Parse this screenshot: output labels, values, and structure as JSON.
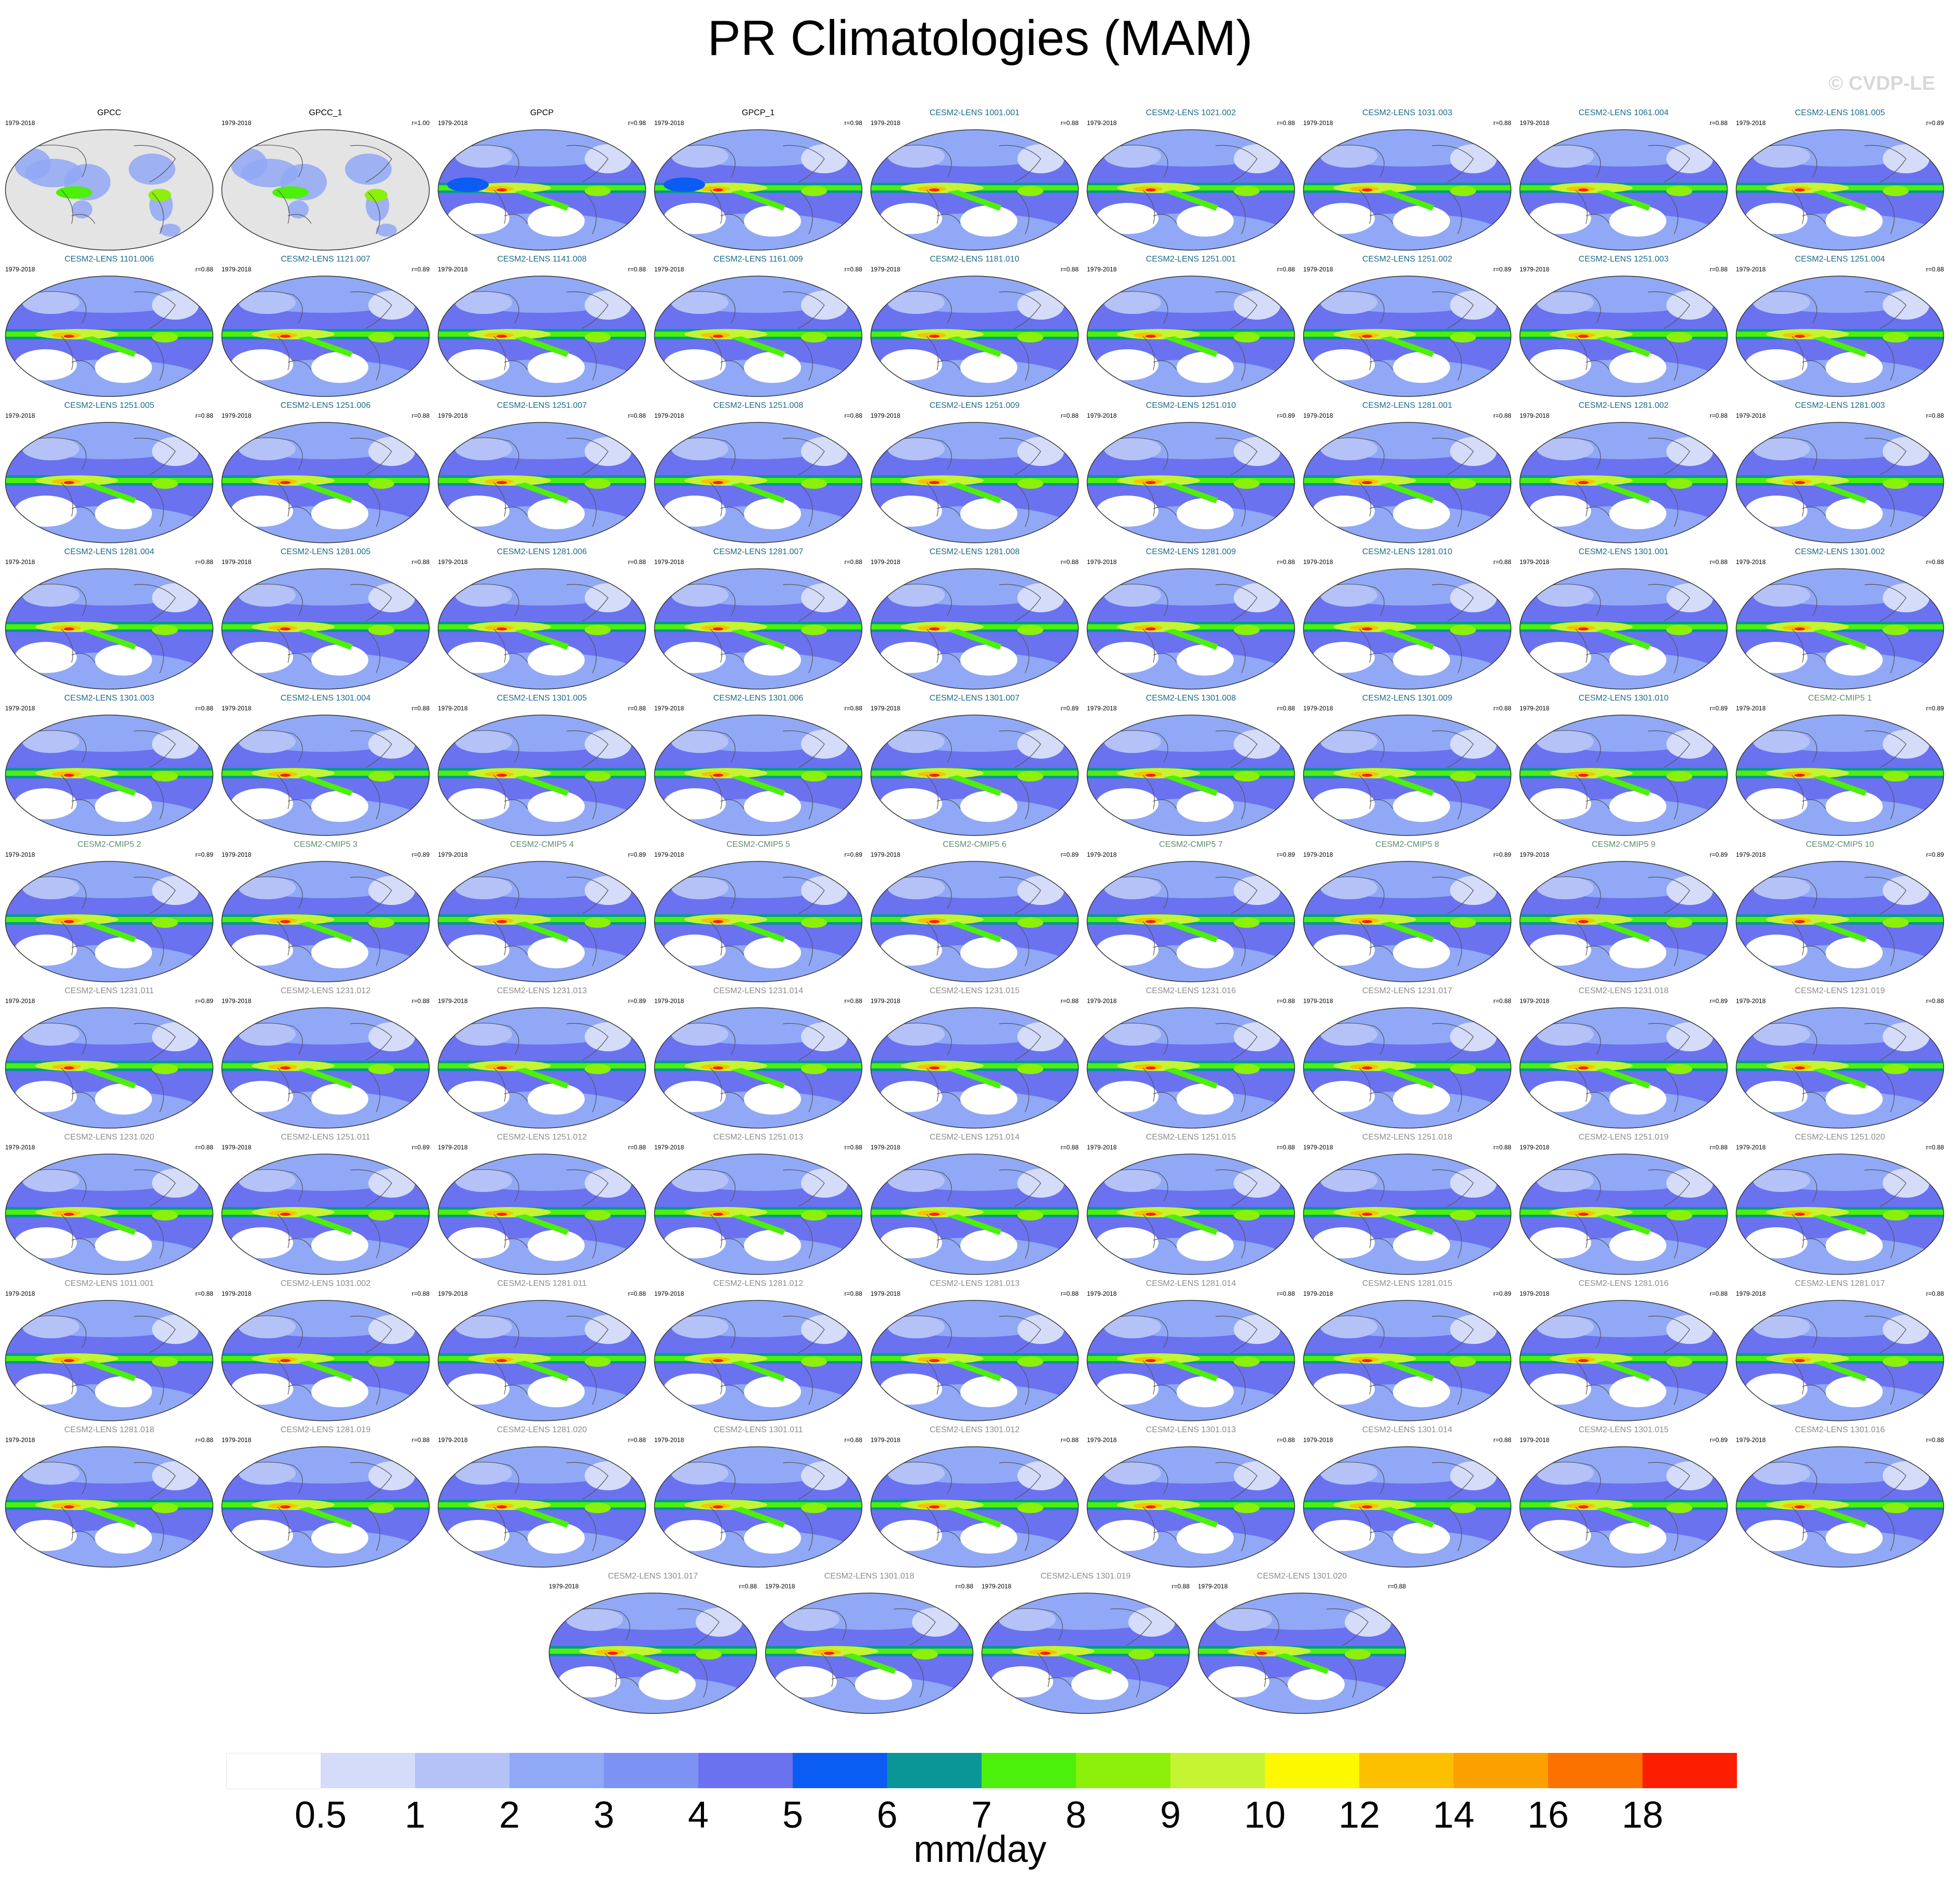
{
  "title": "PR Climatologies (MAM)",
  "watermark": "© CVDP-LE",
  "icons": {
    "map": "world-map-icon"
  },
  "name_colors": {
    "obs": "#000000",
    "lens_a": "#1a6b8a",
    "cmip": "#5e8a6e",
    "lens_b": "#8c8c8c"
  },
  "panels": [
    {
      "name": "GPCC",
      "period": "1979-2018",
      "corr": "",
      "group": "obs",
      "style": "obs"
    },
    {
      "name": "GPCC_1",
      "period": "1979-2018",
      "corr": "r=1.00",
      "group": "obs",
      "style": "obs"
    },
    {
      "name": "GPCP",
      "period": "1979-2018",
      "corr": "r=0.98",
      "group": "obs",
      "style": "obsfull"
    },
    {
      "name": "GPCP_1",
      "period": "1979-2018",
      "corr": "r=0.98",
      "group": "obs",
      "style": "obsfull"
    },
    {
      "name": "CESM2-LENS 1001.001",
      "period": "1979-2018",
      "corr": "r=0.88",
      "group": "lens_a",
      "style": "model"
    },
    {
      "name": "CESM2-LENS 1021.002",
      "period": "1979-2018",
      "corr": "r=0.88",
      "group": "lens_a",
      "style": "model"
    },
    {
      "name": "CESM2-LENS 1031.003",
      "period": "1979-2018",
      "corr": "r=0.88",
      "group": "lens_a",
      "style": "model"
    },
    {
      "name": "CESM2-LENS 1061.004",
      "period": "1979-2018",
      "corr": "r=0.88",
      "group": "lens_a",
      "style": "model"
    },
    {
      "name": "CESM2-LENS 1081.005",
      "period": "1979-2018",
      "corr": "r=0.89",
      "group": "lens_a",
      "style": "model"
    },
    {
      "name": "CESM2-LENS 1101.006",
      "period": "1979-2018",
      "corr": "r=0.88",
      "group": "lens_a",
      "style": "model"
    },
    {
      "name": "CESM2-LENS 1121.007",
      "period": "1979-2018",
      "corr": "r=0.89",
      "group": "lens_a",
      "style": "model"
    },
    {
      "name": "CESM2-LENS 1141.008",
      "period": "1979-2018",
      "corr": "r=0.88",
      "group": "lens_a",
      "style": "model"
    },
    {
      "name": "CESM2-LENS 1161.009",
      "period": "1979-2018",
      "corr": "r=0.88",
      "group": "lens_a",
      "style": "model"
    },
    {
      "name": "CESM2-LENS 1181.010",
      "period": "1979-2018",
      "corr": "r=0.88",
      "group": "lens_a",
      "style": "model"
    },
    {
      "name": "CESM2-LENS 1251.001",
      "period": "1979-2018",
      "corr": "r=0.88",
      "group": "lens_a",
      "style": "model"
    },
    {
      "name": "CESM2-LENS 1251.002",
      "period": "1979-2018",
      "corr": "r=0.89",
      "group": "lens_a",
      "style": "model"
    },
    {
      "name": "CESM2-LENS 1251.003",
      "period": "1979-2018",
      "corr": "r=0.88",
      "group": "lens_a",
      "style": "model"
    },
    {
      "name": "CESM2-LENS 1251.004",
      "period": "1979-2018",
      "corr": "r=0.88",
      "group": "lens_a",
      "style": "model"
    },
    {
      "name": "CESM2-LENS 1251.005",
      "period": "1979-2018",
      "corr": "r=0.88",
      "group": "lens_a",
      "style": "model"
    },
    {
      "name": "CESM2-LENS 1251.006",
      "period": "1979-2018",
      "corr": "r=0.88",
      "group": "lens_a",
      "style": "model"
    },
    {
      "name": "CESM2-LENS 1251.007",
      "period": "1979-2018",
      "corr": "r=0.88",
      "group": "lens_a",
      "style": "model"
    },
    {
      "name": "CESM2-LENS 1251.008",
      "period": "1979-2018",
      "corr": "r=0.88",
      "group": "lens_a",
      "style": "model"
    },
    {
      "name": "CESM2-LENS 1251.009",
      "period": "1979-2018",
      "corr": "r=0.88",
      "group": "lens_a",
      "style": "model"
    },
    {
      "name": "CESM2-LENS 1251.010",
      "period": "1979-2018",
      "corr": "r=0.89",
      "group": "lens_a",
      "style": "model"
    },
    {
      "name": "CESM2-LENS 1281.001",
      "period": "1979-2018",
      "corr": "r=0.88",
      "group": "lens_a",
      "style": "model"
    },
    {
      "name": "CESM2-LENS 1281.002",
      "period": "1979-2018",
      "corr": "r=0.88",
      "group": "lens_a",
      "style": "model"
    },
    {
      "name": "CESM2-LENS 1281.003",
      "period": "1979-2018",
      "corr": "r=0.88",
      "group": "lens_a",
      "style": "model"
    },
    {
      "name": "CESM2-LENS 1281.004",
      "period": "1979-2018",
      "corr": "r=0.88",
      "group": "lens_a",
      "style": "model"
    },
    {
      "name": "CESM2-LENS 1281.005",
      "period": "1979-2018",
      "corr": "r=0.88",
      "group": "lens_a",
      "style": "model"
    },
    {
      "name": "CESM2-LENS 1281.006",
      "period": "1979-2018",
      "corr": "r=0.88",
      "group": "lens_a",
      "style": "model"
    },
    {
      "name": "CESM2-LENS 1281.007",
      "period": "1979-2018",
      "corr": "r=0.88",
      "group": "lens_a",
      "style": "model"
    },
    {
      "name": "CESM2-LENS 1281.008",
      "period": "1979-2018",
      "corr": "r=0.88",
      "group": "lens_a",
      "style": "model"
    },
    {
      "name": "CESM2-LENS 1281.009",
      "period": "1979-2018",
      "corr": "r=0.88",
      "group": "lens_a",
      "style": "model"
    },
    {
      "name": "CESM2-LENS 1281.010",
      "period": "1979-2018",
      "corr": "r=0.88",
      "group": "lens_a",
      "style": "model"
    },
    {
      "name": "CESM2-LENS 1301.001",
      "period": "1979-2018",
      "corr": "r=0.88",
      "group": "lens_a",
      "style": "model"
    },
    {
      "name": "CESM2-LENS 1301.002",
      "period": "1979-2018",
      "corr": "r=0.88",
      "group": "lens_a",
      "style": "model"
    },
    {
      "name": "CESM2-LENS 1301.003",
      "period": "1979-2018",
      "corr": "r=0.88",
      "group": "lens_a",
      "style": "model"
    },
    {
      "name": "CESM2-LENS 1301.004",
      "period": "1979-2018",
      "corr": "r=0.88",
      "group": "lens_a",
      "style": "model"
    },
    {
      "name": "CESM2-LENS 1301.005",
      "period": "1979-2018",
      "corr": "r=0.88",
      "group": "lens_a",
      "style": "model"
    },
    {
      "name": "CESM2-LENS 1301.006",
      "period": "1979-2018",
      "corr": "r=0.88",
      "group": "lens_a",
      "style": "model"
    },
    {
      "name": "CESM2-LENS 1301.007",
      "period": "1979-2018",
      "corr": "r=0.89",
      "group": "lens_a",
      "style": "model"
    },
    {
      "name": "CESM2-LENS 1301.008",
      "period": "1979-2018",
      "corr": "r=0.88",
      "group": "lens_a",
      "style": "model"
    },
    {
      "name": "CESM2-LENS 1301.009",
      "period": "1979-2018",
      "corr": "r=0.88",
      "group": "lens_a",
      "style": "model"
    },
    {
      "name": "CESM2-LENS 1301.010",
      "period": "1979-2018",
      "corr": "r=0.89",
      "group": "lens_a",
      "style": "model"
    },
    {
      "name": "CESM2-CMIP5 1",
      "period": "1979-2018",
      "corr": "r=0.89",
      "group": "cmip",
      "style": "model"
    },
    {
      "name": "CESM2-CMIP5 2",
      "period": "1979-2018",
      "corr": "r=0.89",
      "group": "cmip",
      "style": "model"
    },
    {
      "name": "CESM2-CMIP5 3",
      "period": "1979-2018",
      "corr": "r=0.89",
      "group": "cmip",
      "style": "model"
    },
    {
      "name": "CESM2-CMIP5 4",
      "period": "1979-2018",
      "corr": "r=0.89",
      "group": "cmip",
      "style": "model"
    },
    {
      "name": "CESM2-CMIP5 5",
      "period": "1979-2018",
      "corr": "r=0.89",
      "group": "cmip",
      "style": "model"
    },
    {
      "name": "CESM2-CMIP5 6",
      "period": "1979-2018",
      "corr": "r=0.89",
      "group": "cmip",
      "style": "model"
    },
    {
      "name": "CESM2-CMIP5 7",
      "period": "1979-2018",
      "corr": "r=0.89",
      "group": "cmip",
      "style": "model"
    },
    {
      "name": "CESM2-CMIP5 8",
      "period": "1979-2018",
      "corr": "r=0.89",
      "group": "cmip",
      "style": "model"
    },
    {
      "name": "CESM2-CMIP5 9",
      "period": "1979-2018",
      "corr": "r=0.89",
      "group": "cmip",
      "style": "model"
    },
    {
      "name": "CESM2-CMIP5 10",
      "period": "1979-2018",
      "corr": "r=0.89",
      "group": "cmip",
      "style": "model"
    },
    {
      "name": "CESM2-LENS 1231.011",
      "period": "1979-2018",
      "corr": "r=0.89",
      "group": "lens_b",
      "style": "model"
    },
    {
      "name": "CESM2-LENS 1231.012",
      "period": "1979-2018",
      "corr": "r=0.88",
      "group": "lens_b",
      "style": "model"
    },
    {
      "name": "CESM2-LENS 1231.013",
      "period": "1979-2018",
      "corr": "r=0.89",
      "group": "lens_b",
      "style": "model"
    },
    {
      "name": "CESM2-LENS 1231.014",
      "period": "1979-2018",
      "corr": "r=0.88",
      "group": "lens_b",
      "style": "model"
    },
    {
      "name": "CESM2-LENS 1231.015",
      "period": "1979-2018",
      "corr": "r=0.88",
      "group": "lens_b",
      "style": "model"
    },
    {
      "name": "CESM2-LENS 1231.016",
      "period": "1979-2018",
      "corr": "r=0.88",
      "group": "lens_b",
      "style": "model"
    },
    {
      "name": "CESM2-LENS 1231.017",
      "period": "1979-2018",
      "corr": "r=0.88",
      "group": "lens_b",
      "style": "model"
    },
    {
      "name": "CESM2-LENS 1231.018",
      "period": "1979-2018",
      "corr": "r=0.89",
      "group": "lens_b",
      "style": "model"
    },
    {
      "name": "CESM2-LENS 1231.019",
      "period": "1979-2018",
      "corr": "r=0.88",
      "group": "lens_b",
      "style": "model"
    },
    {
      "name": "CESM2-LENS 1231.020",
      "period": "1979-2018",
      "corr": "r=0.88",
      "group": "lens_b",
      "style": "model"
    },
    {
      "name": "CESM2-LENS 1251.011",
      "period": "1979-2018",
      "corr": "r=0.89",
      "group": "lens_b",
      "style": "model"
    },
    {
      "name": "CESM2-LENS 1251.012",
      "period": "1979-2018",
      "corr": "r=0.88",
      "group": "lens_b",
      "style": "model"
    },
    {
      "name": "CESM2-LENS 1251.013",
      "period": "1979-2018",
      "corr": "r=0.88",
      "group": "lens_b",
      "style": "model"
    },
    {
      "name": "CESM2-LENS 1251.014",
      "period": "1979-2018",
      "corr": "r=0.88",
      "group": "lens_b",
      "style": "model"
    },
    {
      "name": "CESM2-LENS 1251.015",
      "period": "1979-2018",
      "corr": "r=0.88",
      "group": "lens_b",
      "style": "model"
    },
    {
      "name": "CESM2-LENS 1251.018",
      "period": "1979-2018",
      "corr": "r=0.88",
      "group": "lens_b",
      "style": "model"
    },
    {
      "name": "CESM2-LENS 1251.019",
      "period": "1979-2018",
      "corr": "r=0.88",
      "group": "lens_b",
      "style": "model"
    },
    {
      "name": "CESM2-LENS 1251.020",
      "period": "1979-2018",
      "corr": "r=0.88",
      "group": "lens_b",
      "style": "model"
    },
    {
      "name": "CESM2-LENS 1011.001",
      "period": "1979-2018",
      "corr": "r=0.88",
      "group": "lens_b",
      "style": "model"
    },
    {
      "name": "CESM2-LENS 1031.002",
      "period": "1979-2018",
      "corr": "r=0.88",
      "group": "lens_b",
      "style": "model"
    },
    {
      "name": "CESM2-LENS 1281.011",
      "period": "1979-2018",
      "corr": "r=0.88",
      "group": "lens_b",
      "style": "model"
    },
    {
      "name": "CESM2-LENS 1281.012",
      "period": "1979-2018",
      "corr": "r=0.88",
      "group": "lens_b",
      "style": "model"
    },
    {
      "name": "CESM2-LENS 1281.013",
      "period": "1979-2018",
      "corr": "r=0.88",
      "group": "lens_b",
      "style": "model"
    },
    {
      "name": "CESM2-LENS 1281.014",
      "period": "1979-2018",
      "corr": "r=0.88",
      "group": "lens_b",
      "style": "model"
    },
    {
      "name": "CESM2-LENS 1281.015",
      "period": "1979-2018",
      "corr": "r=0.89",
      "group": "lens_b",
      "style": "model"
    },
    {
      "name": "CESM2-LENS 1281.016",
      "period": "1979-2018",
      "corr": "r=0.88",
      "group": "lens_b",
      "style": "model"
    },
    {
      "name": "CESM2-LENS 1281.017",
      "period": "1979-2018",
      "corr": "r=0.88",
      "group": "lens_b",
      "style": "model"
    },
    {
      "name": "CESM2-LENS 1281.018",
      "period": "1979-2018",
      "corr": "r=0.88",
      "group": "lens_b",
      "style": "model"
    },
    {
      "name": "CESM2-LENS 1281.019",
      "period": "1979-2018",
      "corr": "r=0.88",
      "group": "lens_b",
      "style": "model"
    },
    {
      "name": "CESM2-LENS 1281.020",
      "period": "1979-2018",
      "corr": "r=0.88",
      "group": "lens_b",
      "style": "model"
    },
    {
      "name": "CESM2-LENS 1301.011",
      "period": "1979-2018",
      "corr": "r=0.88",
      "group": "lens_b",
      "style": "model"
    },
    {
      "name": "CESM2-LENS 1301.012",
      "period": "1979-2018",
      "corr": "r=0.88",
      "group": "lens_b",
      "style": "model"
    },
    {
      "name": "CESM2-LENS 1301.013",
      "period": "1979-2018",
      "corr": "r=0.88",
      "group": "lens_b",
      "style": "model"
    },
    {
      "name": "CESM2-LENS 1301.014",
      "period": "1979-2018",
      "corr": "r=0.88",
      "group": "lens_b",
      "style": "model"
    },
    {
      "name": "CESM2-LENS 1301.015",
      "period": "1979-2018",
      "corr": "r=0.89",
      "group": "lens_b",
      "style": "model"
    },
    {
      "name": "CESM2-LENS 1301.016",
      "period": "1979-2018",
      "corr": "r=0.88",
      "group": "lens_b",
      "style": "model"
    },
    {
      "name": "CESM2-LENS 1301.017",
      "period": "1979-2018",
      "corr": "r=0.88",
      "group": "lens_b",
      "style": "model"
    },
    {
      "name": "CESM2-LENS 1301.018",
      "period": "1979-2018",
      "corr": "r=0.88",
      "group": "lens_b",
      "style": "model"
    },
    {
      "name": "CESM2-LENS 1301.019",
      "period": "1979-2018",
      "corr": "r=0.88",
      "group": "lens_b",
      "style": "model"
    },
    {
      "name": "CESM2-LENS 1301.020",
      "period": "1979-2018",
      "corr": "r=0.88",
      "group": "lens_b",
      "style": "model"
    }
  ],
  "colorbar": {
    "units": "mm/day",
    "ticks": [
      "0.5",
      "1",
      "2",
      "3",
      "4",
      "5",
      "6",
      "7",
      "8",
      "9",
      "10",
      "12",
      "14",
      "16",
      "18"
    ],
    "colors": [
      "#ffffff",
      "#d4dcfa",
      "#b4c2f8",
      "#90a8f6",
      "#7e92f4",
      "#6a72f0",
      "#0a5cf2",
      "#0a9696",
      "#4cf00a",
      "#8cf00a",
      "#c4f432",
      "#fcf800",
      "#fcc000",
      "#fca000",
      "#fc7200",
      "#fc1e00"
    ]
  }
}
